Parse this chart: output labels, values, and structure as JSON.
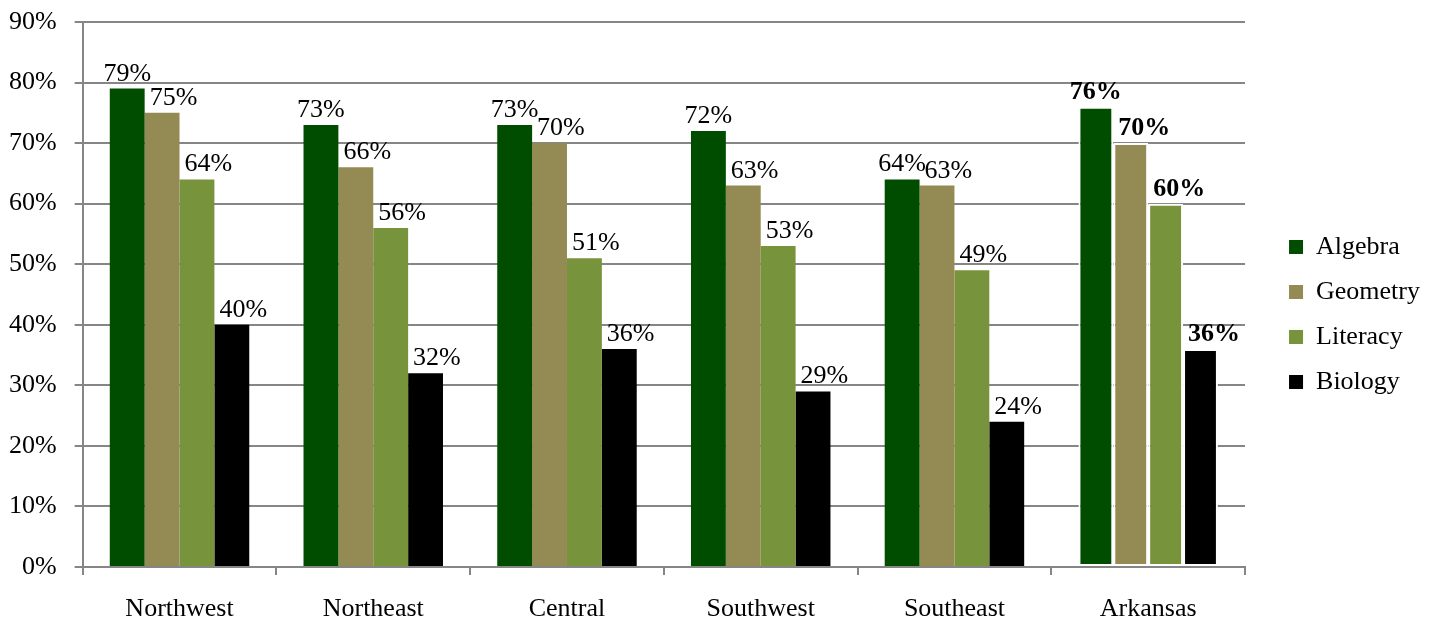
{
  "chart_data": {
    "type": "bar",
    "categories": [
      "Northwest",
      "Northeast",
      "Central",
      "Southwest",
      "Southeast",
      "Arkansas"
    ],
    "series": [
      {
        "name": "Algebra",
        "color": "#004d00",
        "values": [
          79,
          73,
          73,
          72,
          64,
          76
        ],
        "value_labels": [
          "79%",
          "73%",
          "73%",
          "72%",
          "64%",
          "76%"
        ]
      },
      {
        "name": "Geometry",
        "color": "#948a54",
        "values": [
          75,
          66,
          70,
          63,
          63,
          70
        ],
        "value_labels": [
          "75%",
          "66%",
          "70%",
          "63%",
          "63%",
          "70%"
        ]
      },
      {
        "name": "Literacy",
        "color": "#77933c",
        "values": [
          64,
          56,
          51,
          53,
          49,
          60
        ],
        "value_labels": [
          "64%",
          "56%",
          "51%",
          "53%",
          "49%",
          "60%"
        ]
      },
      {
        "name": "Biology",
        "color": "#000000",
        "values": [
          40,
          32,
          36,
          29,
          24,
          36
        ],
        "value_labels": [
          "40%",
          "32%",
          "36%",
          "29%",
          "24%",
          "36%"
        ]
      }
    ],
    "ylim": [
      0,
      90
    ],
    "yticks": [
      {
        "value": 0,
        "label": "0%"
      },
      {
        "value": 10,
        "label": "10%"
      },
      {
        "value": 20,
        "label": "20%"
      },
      {
        "value": 30,
        "label": "30%"
      },
      {
        "value": 40,
        "label": "40%"
      },
      {
        "value": 50,
        "label": "50%"
      },
      {
        "value": 60,
        "label": "60%"
      },
      {
        "value": 70,
        "label": "70%"
      },
      {
        "value": 80,
        "label": "80%"
      },
      {
        "value": 90,
        "label": "90%"
      }
    ],
    "grid": "y",
    "legend": "right"
  }
}
